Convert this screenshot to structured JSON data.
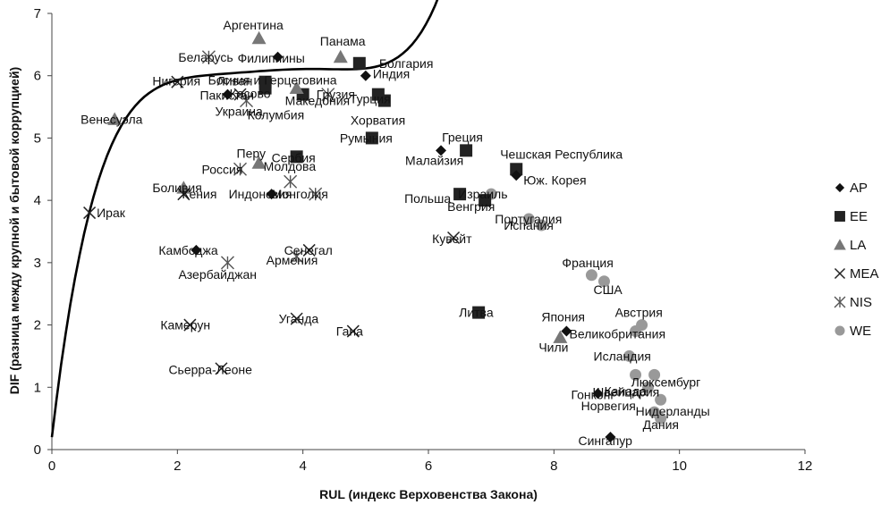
{
  "chart_data": {
    "type": "scatter",
    "xlabel": "RUL (индекс Верховенства Закона)",
    "ylabel": "DIF (разница между крупной и бытовой коррупцией)",
    "xlim": [
      0,
      12
    ],
    "ylim": [
      0,
      7
    ],
    "xticks": [
      "0",
      "2",
      "4",
      "6",
      "8",
      "10",
      "12"
    ],
    "yticks": [
      "0",
      "1",
      "2",
      "3",
      "4",
      "5",
      "6",
      "7"
    ],
    "grid": false,
    "legend_position": "right",
    "colors": {
      "dark": "#111111",
      "gray": "#777777",
      "light_gray": "#999999"
    },
    "legend": [
      {
        "key": "AP",
        "label": "AP",
        "marker": "diamond"
      },
      {
        "key": "EE",
        "label": "EE",
        "marker": "square"
      },
      {
        "key": "LA",
        "label": "LA",
        "marker": "triangle"
      },
      {
        "key": "MEA",
        "label": "MEA",
        "marker": "x"
      },
      {
        "key": "NIS",
        "label": "NIS",
        "marker": "star"
      },
      {
        "key": "WE",
        "label": "WE",
        "marker": "circle"
      }
    ],
    "trend": {
      "type": "polynomial",
      "x_start": 0,
      "x_end": 10.3,
      "y_start": 3.55,
      "peak_x": 3.0,
      "peak_y": 6.05
    },
    "points": [
      {
        "label": "Ирак",
        "group": "MEA",
        "x": 0.6,
        "y": 3.8
      },
      {
        "label": "Венесуэла",
        "group": "LA",
        "x": 1.0,
        "y": 5.3
      },
      {
        "label": "Нигерия",
        "group": "MEA",
        "x": 2.0,
        "y": 5.9
      },
      {
        "label": "Беларусь",
        "group": "NIS",
        "x": 2.5,
        "y": 6.3
      },
      {
        "label": "Аргентина",
        "group": "LA",
        "x": 3.3,
        "y": 6.6
      },
      {
        "label": "Филиппины",
        "group": "AP",
        "x": 3.6,
        "y": 6.3
      },
      {
        "label": "Пакистан",
        "group": "AP",
        "x": 2.8,
        "y": 5.7
      },
      {
        "label": "Ливан",
        "group": "MEA",
        "x": 3.0,
        "y": 5.7
      },
      {
        "label": "Украина",
        "group": "NIS",
        "x": 3.1,
        "y": 5.6
      },
      {
        "label": "Босния и Герцеговина",
        "group": "EE",
        "x": 3.4,
        "y": 5.9
      },
      {
        "label": "Косово",
        "group": "EE",
        "x": 3.4,
        "y": 5.8
      },
      {
        "label": "Панама",
        "group": "LA",
        "x": 4.6,
        "y": 6.3
      },
      {
        "label": "Болгария",
        "group": "EE",
        "x": 4.9,
        "y": 6.2
      },
      {
        "label": "Индия",
        "group": "AP",
        "x": 5.0,
        "y": 6.0
      },
      {
        "label": "Грузия",
        "group": "NIS",
        "x": 4.4,
        "y": 5.7
      },
      {
        "label": "Турция",
        "group": "EE",
        "x": 5.2,
        "y": 5.7
      },
      {
        "label": "Македония",
        "group": "EE",
        "x": 4.0,
        "y": 5.7
      },
      {
        "label": "Колумбия",
        "group": "LA",
        "x": 3.9,
        "y": 5.8
      },
      {
        "label": "Хорватия",
        "group": "EE",
        "x": 5.3,
        "y": 5.6
      },
      {
        "label": "Румыния",
        "group": "EE",
        "x": 5.1,
        "y": 5.0
      },
      {
        "label": "Греция",
        "group": "EE",
        "x": 6.6,
        "y": 4.8
      },
      {
        "label": "Малайзия",
        "group": "AP",
        "x": 6.2,
        "y": 4.8
      },
      {
        "label": "Чешская Республика",
        "group": "EE",
        "x": 7.4,
        "y": 4.5
      },
      {
        "label": "Юж. Корея",
        "group": "AP",
        "x": 7.4,
        "y": 4.4
      },
      {
        "label": "Перу",
        "group": "LA",
        "x": 3.3,
        "y": 4.6
      },
      {
        "label": "Сербия",
        "group": "EE",
        "x": 3.9,
        "y": 4.7
      },
      {
        "label": "Россия",
        "group": "NIS",
        "x": 3.0,
        "y": 4.5
      },
      {
        "label": "Молдова",
        "group": "NIS",
        "x": 3.8,
        "y": 4.3
      },
      {
        "label": "Боливия",
        "group": "LA",
        "x": 2.1,
        "y": 4.2
      },
      {
        "label": "Кения",
        "group": "MEA",
        "x": 2.1,
        "y": 4.1
      },
      {
        "label": "Индонезия",
        "group": "AP",
        "x": 3.5,
        "y": 4.1
      },
      {
        "label": "Монголия",
        "group": "NIS",
        "x": 4.2,
        "y": 4.1
      },
      {
        "label": "Польша",
        "group": "EE",
        "x": 6.5,
        "y": 4.1
      },
      {
        "label": "Израиль",
        "group": "WE",
        "x": 7.0,
        "y": 4.1
      },
      {
        "label": "Венгрия",
        "group": "EE",
        "x": 6.9,
        "y": 4.0
      },
      {
        "label": "Португалия",
        "group": "WE",
        "x": 7.6,
        "y": 3.7
      },
      {
        "label": "Испания",
        "group": "WE",
        "x": 7.8,
        "y": 3.6
      },
      {
        "label": "Кувейт",
        "group": "MEA",
        "x": 6.4,
        "y": 3.4
      },
      {
        "label": "Камбоджа",
        "group": "AP",
        "x": 2.3,
        "y": 3.2
      },
      {
        "label": "Азербайджан",
        "group": "NIS",
        "x": 2.8,
        "y": 3.0
      },
      {
        "label": "Сенегал",
        "group": "MEA",
        "x": 4.1,
        "y": 3.2
      },
      {
        "label": "Армения",
        "group": "NIS",
        "x": 3.9,
        "y": 3.1
      },
      {
        "label": "Франция",
        "group": "WE",
        "x": 8.6,
        "y": 2.8
      },
      {
        "label": "США",
        "group": "WE",
        "x": 8.8,
        "y": 2.7
      },
      {
        "label": "Литва",
        "group": "EE",
        "x": 6.8,
        "y": 2.2
      },
      {
        "label": "Камерун",
        "group": "MEA",
        "x": 2.2,
        "y": 2.0
      },
      {
        "label": "Уганда",
        "group": "MEA",
        "x": 3.9,
        "y": 2.1
      },
      {
        "label": "Гана",
        "group": "MEA",
        "x": 4.8,
        "y": 1.9
      },
      {
        "label": "Япония",
        "group": "AP",
        "x": 8.2,
        "y": 1.9
      },
      {
        "label": "Чили",
        "group": "LA",
        "x": 8.1,
        "y": 1.8
      },
      {
        "label": "Австрия",
        "group": "WE",
        "x": 9.4,
        "y": 2.0
      },
      {
        "label": "Великобритания",
        "group": "WE",
        "x": 9.3,
        "y": 1.9
      },
      {
        "label": "Исландия",
        "group": "WE",
        "x": 9.2,
        "y": 1.5
      },
      {
        "label": "Швейцария",
        "group": "WE",
        "x": 9.3,
        "y": 1.2
      },
      {
        "label": "Люксембург",
        "group": "WE",
        "x": 9.6,
        "y": 1.2
      },
      {
        "label": "Канада",
        "group": "WE",
        "x": 9.5,
        "y": 1.0
      },
      {
        "label": "Нидерланды",
        "group": "WE",
        "x": 9.7,
        "y": 0.8
      },
      {
        "label": "Сьерра-Леоне",
        "group": "MEA",
        "x": 2.7,
        "y": 1.3
      },
      {
        "label": "Гонконг",
        "group": "AP",
        "x": 8.7,
        "y": 0.9
      },
      {
        "label": "Норвегия",
        "group": "WE",
        "x": 9.6,
        "y": 0.6
      },
      {
        "label": "Дания",
        "group": "WE",
        "x": 9.7,
        "y": 0.5
      },
      {
        "label": "Сингапур",
        "group": "AP",
        "x": 8.9,
        "y": 0.2
      }
    ]
  }
}
